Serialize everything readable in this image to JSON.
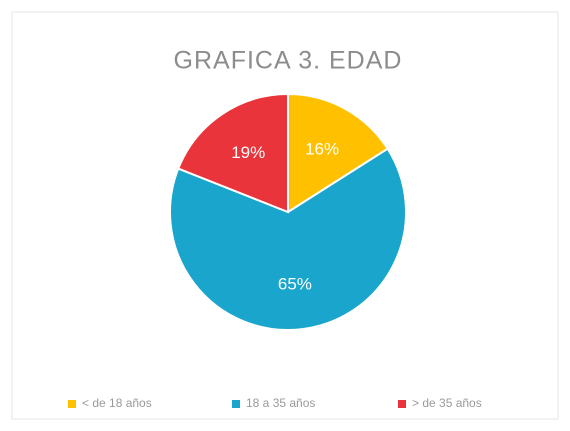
{
  "chart_data": {
    "type": "pie",
    "title": "GRAFICA 3. EDAD",
    "categories": [
      "< de 18 años",
      "18 a 35 años",
      "> de 35 años"
    ],
    "values": [
      16,
      65,
      19
    ],
    "value_labels": [
      "16%",
      "65%",
      "19%"
    ],
    "colors": [
      "#FFC000",
      "#1AA5CC",
      "#E8343A"
    ],
    "legend": "bottom"
  }
}
